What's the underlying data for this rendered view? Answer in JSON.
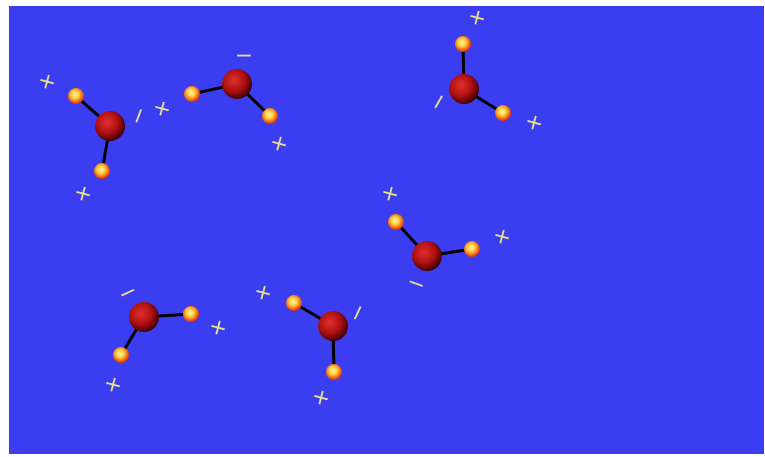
{
  "colors": {
    "background": "#3a3df0",
    "oxygen_core": "#b01010",
    "oxygen_edge": "#3a0000",
    "hydrogen_core": "#ffe85a",
    "hydrogen_edge": "#e02000",
    "bond": "#000000",
    "charge_label": "#e6e090"
  },
  "labels": {
    "positive": "+",
    "negative": "−"
  },
  "molecules": [
    {
      "name": "water-molecule-1"
    },
    {
      "name": "water-molecule-2"
    },
    {
      "name": "water-molecule-3"
    },
    {
      "name": "water-molecule-4"
    },
    {
      "name": "water-molecule-5"
    },
    {
      "name": "water-molecule-6"
    }
  ]
}
